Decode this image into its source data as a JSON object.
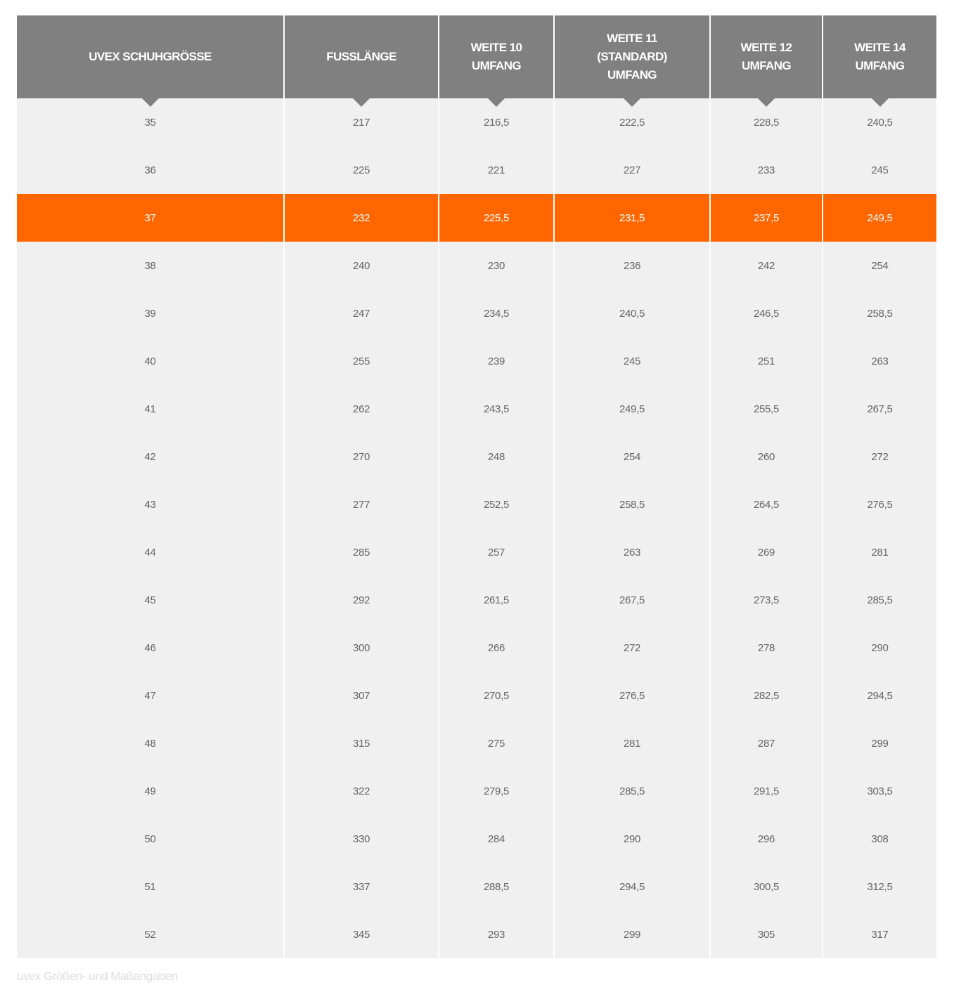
{
  "table": {
    "headers": [
      "UVEX SCHUHGRÖSSE",
      "FUSSLÄNGE",
      "WEITE 10\nUMFANG",
      "WEITE 11\n(STANDARD)\nUMFANG",
      "WEITE 12\nUMFANG",
      "WEITE 14\nUMFANG"
    ],
    "highlighted_row": 2,
    "rows": [
      [
        "35",
        "217",
        "216,5",
        "222,5",
        "228,5",
        "240,5"
      ],
      [
        "36",
        "225",
        "221",
        "227",
        "233",
        "245"
      ],
      [
        "37",
        "232",
        "225,5",
        "231,5",
        "237,5",
        "249,5"
      ],
      [
        "38",
        "240",
        "230",
        "236",
        "242",
        "254"
      ],
      [
        "39",
        "247",
        "234,5",
        "240,5",
        "246,5",
        "258,5"
      ],
      [
        "40",
        "255",
        "239",
        "245",
        "251",
        "263"
      ],
      [
        "41",
        "262",
        "243,5",
        "249,5",
        "255,5",
        "267,5"
      ],
      [
        "42",
        "270",
        "248",
        "254",
        "260",
        "272"
      ],
      [
        "43",
        "277",
        "252,5",
        "258,5",
        "264,5",
        "276,5"
      ],
      [
        "44",
        "285",
        "257",
        "263",
        "269",
        "281"
      ],
      [
        "45",
        "292",
        "261,5",
        "267,5",
        "273,5",
        "285,5"
      ],
      [
        "46",
        "300",
        "266",
        "272",
        "278",
        "290"
      ],
      [
        "47",
        "307",
        "270,5",
        "276,5",
        "282,5",
        "294,5"
      ],
      [
        "48",
        "315",
        "275",
        "281",
        "287",
        "299"
      ],
      [
        "49",
        "322",
        "279,5",
        "285,5",
        "291,5",
        "303,5"
      ],
      [
        "50",
        "330",
        "284",
        "290",
        "296",
        "308"
      ],
      [
        "51",
        "337",
        "288,5",
        "294,5",
        "300,5",
        "312,5"
      ],
      [
        "52",
        "345",
        "293",
        "299",
        "305",
        "317"
      ]
    ]
  },
  "caption": "uvex Größen- und Maßangaben",
  "colors": {
    "header": "#808080",
    "highlight": "#ff6600",
    "cell": "#f0f0f0"
  }
}
